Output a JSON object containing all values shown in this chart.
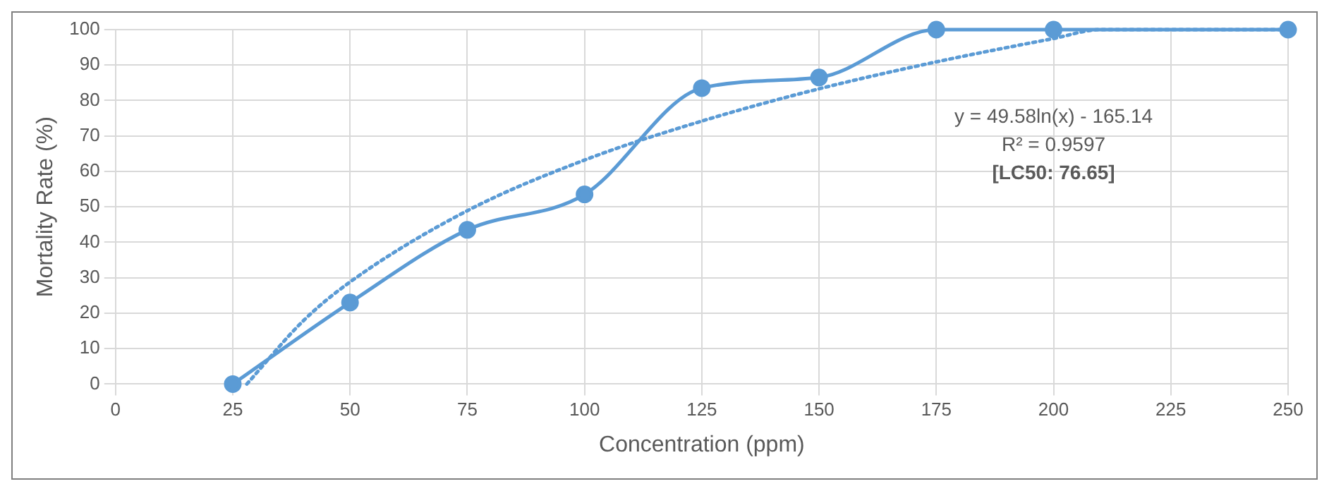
{
  "chart_data": {
    "type": "line",
    "xlabel": "Concentration (ppm)",
    "ylabel": "Mortality Rate (%)",
    "xlim": [
      0,
      250
    ],
    "xticks": [
      0,
      25,
      50,
      75,
      100,
      125,
      150,
      175,
      200,
      225,
      250
    ],
    "ylim": [
      0,
      100
    ],
    "yticks": [
      0,
      10,
      20,
      30,
      40,
      50,
      60,
      70,
      80,
      90,
      100
    ],
    "grid": true,
    "legend": false,
    "series": [
      {
        "color": "#5b9bd5",
        "marker": "circle",
        "line_style": "solid",
        "x": [
          25,
          50,
          75,
          100,
          125,
          150,
          175,
          200,
          250
        ],
        "values": [
          0,
          23,
          43.5,
          53.5,
          83.5,
          86.5,
          100,
          100,
          100
        ]
      },
      {
        "color": "#5b9bd5",
        "marker": "none",
        "line_style": "dotted",
        "x": [
          28,
          40,
          50,
          75,
          100,
          125,
          150,
          175,
          200,
          210,
          250
        ],
        "values": [
          0,
          17.8,
          28.8,
          48.9,
          63.2,
          74.2,
          83.3,
          90.9,
          97.5,
          100,
          100
        ]
      }
    ],
    "annotations": [
      "y = 49.58ln(x) - 165.14",
      "R² = 0.9597",
      "[LC50: 76.65]"
    ]
  }
}
